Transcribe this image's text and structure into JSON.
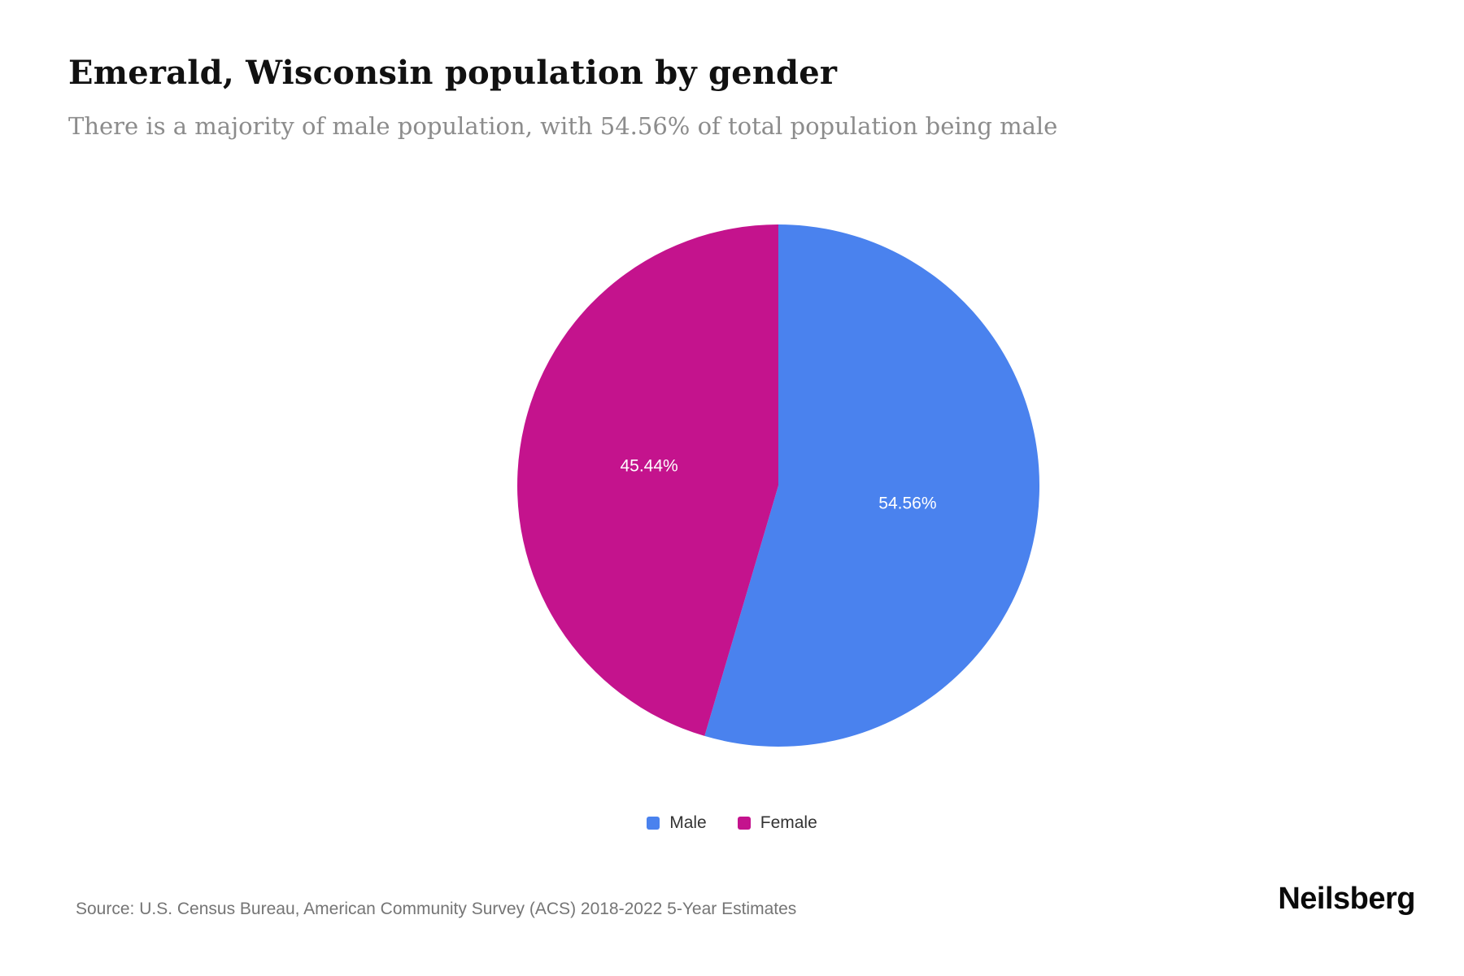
{
  "page": {
    "title": "Emerald, Wisconsin population by gender",
    "subtitle": "There is a majority of male population, with 54.56% of total population being male",
    "source": "Source: U.S. Census Bureau, American Community Survey (ACS) 2018-2022 5-Year Estimates",
    "brand": "Neilsberg"
  },
  "chart_data": {
    "type": "pie",
    "title": "Emerald, Wisconsin population by gender",
    "slices": [
      {
        "label": "Male",
        "value": 54.56,
        "display": "54.56%",
        "color": "#4a82ee"
      },
      {
        "label": "Female",
        "value": 45.44,
        "display": "45.44%",
        "color": "#c4138d"
      }
    ],
    "start_angle_deg": 0,
    "direction": "clockwise",
    "data_labels": "inside",
    "legend_position": "bottom"
  }
}
